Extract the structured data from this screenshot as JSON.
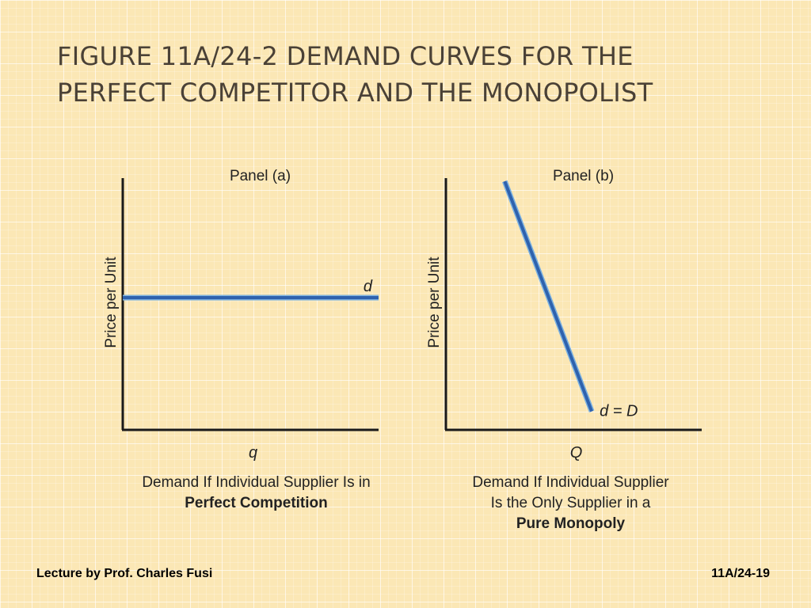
{
  "slide": {
    "title_lines": [
      "FIGURE 11A/24-2  DEMAND CURVES FOR THE",
      "PERFECT COMPETITOR AND THE MONOPOLIST"
    ],
    "footer_left": "Lecture by Prof. Charles Fusi",
    "footer_right": "11A/24-19"
  },
  "colors": {
    "curve": "#2f62ad",
    "curve_edge": "#7ab0e0",
    "axis": "#1a1a1a",
    "text": "#222222",
    "title": "#4a4136"
  },
  "chart_data": [
    {
      "type": "line",
      "title": "Panel (a)",
      "xlabel": "q",
      "ylabel": "Price per Unit",
      "xlim": [
        0,
        10
      ],
      "ylim": [
        0,
        10
      ],
      "grid": false,
      "series": [
        {
          "name": "d",
          "x": [
            0,
            10
          ],
          "y": [
            5,
            5
          ]
        }
      ],
      "caption_lines": [
        {
          "text": "Demand If Individual Supplier Is in",
          "bold": false
        },
        {
          "text": "Perfect Competition",
          "bold": true
        }
      ]
    },
    {
      "type": "line",
      "title": "Panel (b)",
      "xlabel": "Q",
      "ylabel": "Price per Unit",
      "xlim": [
        0,
        10
      ],
      "ylim": [
        0,
        10
      ],
      "grid": false,
      "series": [
        {
          "name": "d = D",
          "x": [
            2.3,
            5.7
          ],
          "y": [
            9.4,
            0.7
          ]
        }
      ],
      "caption_lines": [
        {
          "text": "Demand If Individual Supplier",
          "bold": false
        },
        {
          "text": "Is the Only Supplier in a",
          "bold": false
        },
        {
          "text": "Pure Monopoly",
          "bold": true
        }
      ]
    }
  ]
}
